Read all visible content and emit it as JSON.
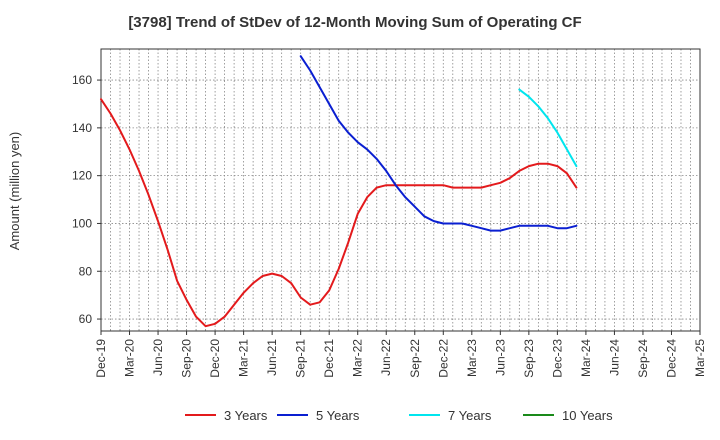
{
  "chart_data": {
    "type": "line",
    "title": "[3798]  Trend of StDev of 12-Month Moving Sum of Operating CF",
    "ylabel": "Amount (million yen)",
    "xlabel": "",
    "ylim": [
      55,
      173
    ],
    "yticks": [
      60,
      80,
      100,
      120,
      140,
      160
    ],
    "x_tick_labels": [
      "Dec-19",
      "Mar-20",
      "Jun-20",
      "Sep-20",
      "Dec-20",
      "Mar-21",
      "Jun-21",
      "Sep-21",
      "Dec-21",
      "Mar-22",
      "Jun-22",
      "Sep-22",
      "Dec-22",
      "Mar-23",
      "Jun-23",
      "Sep-23",
      "Dec-23",
      "Mar-24",
      "Jun-24",
      "Sep-24",
      "Dec-24",
      "Mar-25"
    ],
    "grid": true,
    "legend_position": "bottom",
    "series": [
      {
        "name": "3 Years",
        "color": "#e31a1c",
        "values": [
          152,
          146,
          139,
          131,
          122,
          112,
          101,
          89,
          76,
          68,
          61,
          57,
          58,
          61,
          66,
          71,
          75,
          78,
          79,
          78,
          75,
          69,
          66,
          67,
          72,
          81,
          92,
          104,
          111,
          115,
          116,
          116,
          116,
          116,
          116,
          116,
          116,
          115,
          115,
          115,
          115,
          116,
          117,
          119,
          122,
          124,
          125,
          125,
          124,
          121,
          115
        ]
      },
      {
        "name": "5 Years",
        "color": "#0a1fd1",
        "values": [
          null,
          null,
          null,
          null,
          null,
          null,
          null,
          null,
          null,
          null,
          null,
          null,
          null,
          null,
          null,
          null,
          null,
          null,
          null,
          null,
          null,
          170,
          164,
          157,
          150,
          143,
          138,
          134,
          131,
          127,
          122,
          116,
          111,
          107,
          103,
          101,
          100,
          100,
          100,
          99,
          98,
          97,
          97,
          98,
          99,
          99,
          99,
          99,
          98,
          98,
          99
        ]
      },
      {
        "name": "7 Years",
        "color": "#00e5ee",
        "values": [
          null,
          null,
          null,
          null,
          null,
          null,
          null,
          null,
          null,
          null,
          null,
          null,
          null,
          null,
          null,
          null,
          null,
          null,
          null,
          null,
          null,
          null,
          null,
          null,
          null,
          null,
          null,
          null,
          null,
          null,
          null,
          null,
          null,
          null,
          null,
          null,
          null,
          null,
          null,
          null,
          null,
          null,
          null,
          null,
          156,
          153,
          149,
          144,
          138,
          131,
          124
        ]
      },
      {
        "name": "10 Years",
        "color": "#1a8a1a",
        "values": []
      }
    ]
  }
}
